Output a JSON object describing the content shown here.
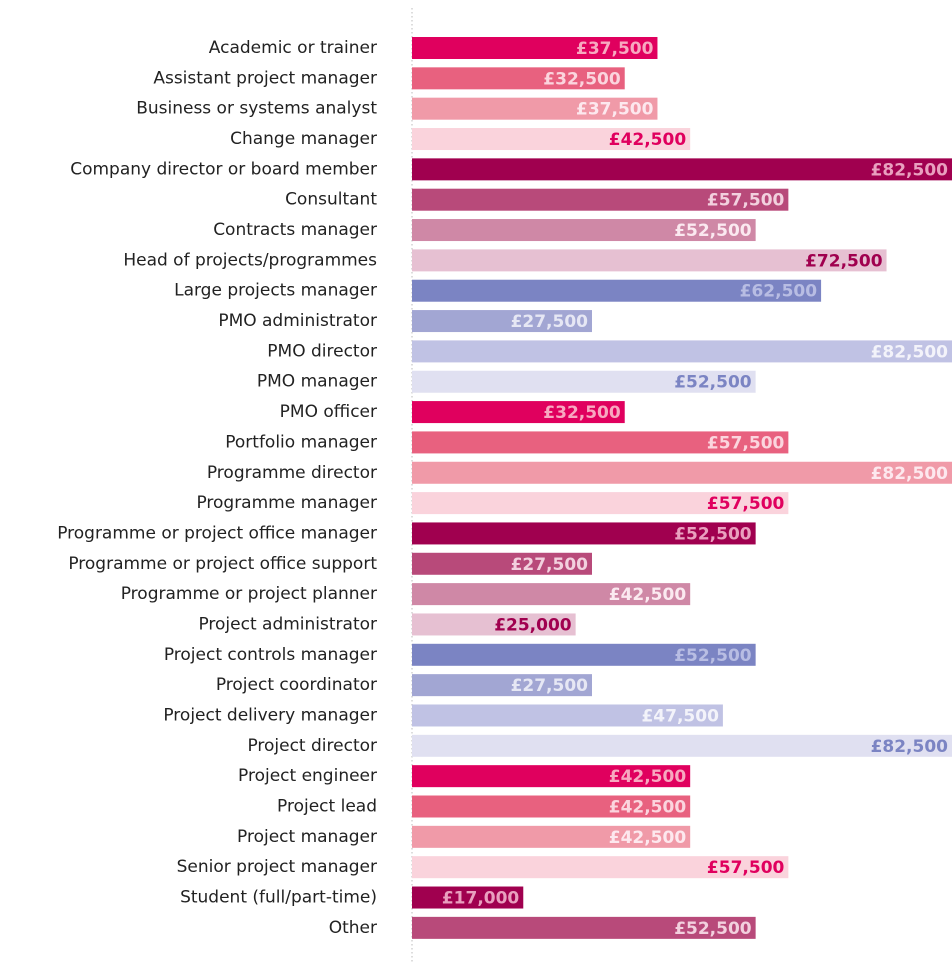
{
  "chart_data": {
    "type": "bar",
    "orientation": "horizontal",
    "categories": [
      "Academic or trainer",
      "Assistant project manager",
      "Business or systems analyst",
      "Change manager",
      "Company director or board member",
      "Consultant",
      "Contracts manager",
      "Head of projects/programmes",
      "Large projects manager",
      "PMO administrator",
      "PMO director",
      "PMO manager",
      "PMO officer",
      "Portfolio manager",
      "Programme director",
      "Programme manager",
      "Programme or project office manager",
      "Programme or project office support",
      "Programme or project planner",
      "Project administrator",
      "Project controls manager",
      "Project coordinator",
      "Project delivery manager",
      "Project director",
      "Project engineer",
      "Project lead",
      "Project manager",
      "Senior project manager",
      "Student (full/part-time)",
      "Other"
    ],
    "values": [
      37500,
      32500,
      37500,
      42500,
      82500,
      57500,
      52500,
      72500,
      62500,
      27500,
      82500,
      52500,
      32500,
      57500,
      82500,
      57500,
      52500,
      27500,
      42500,
      25000,
      52500,
      27500,
      47500,
      82500,
      42500,
      42500,
      42500,
      57500,
      17000,
      52500
    ],
    "value_labels": [
      "£37,500",
      "£32,500",
      "£37,500",
      "£42,500",
      "£82,500",
      "£57,500",
      "£52,500",
      "£72,500",
      "£62,500",
      "£27,500",
      "£82,500",
      "£52,500",
      "£32,500",
      "£57,500",
      "£82,500",
      "£57,500",
      "£52,500",
      "£27,500",
      "£42,500",
      "£25,000",
      "£52,500",
      "£27,500",
      "£47,500",
      "£82,500",
      "£42,500",
      "£42,500",
      "£42,500",
      "£57,500",
      "£17,000",
      "£52,500"
    ],
    "colors": [
      "#e0005e",
      "#e8617f",
      "#f09aa8",
      "#fad3dc",
      "#a0004f",
      "#b84a7a",
      "#cf88a6",
      "#e6c0d2",
      "#7b84c3",
      "#a2a6d3",
      "#c0c2e4",
      "#e0e0f1"
    ],
    "label_colors": [
      "#f7a8c0",
      "#fbd5de",
      "#fde8ee",
      "#e0005e",
      "#e9a0bf",
      "#f2d0de",
      "#fbe9f0",
      "#a0004f",
      "#b8bde3",
      "#e6e7f4",
      "#f3f3fa",
      "#7b84c3"
    ]
  }
}
